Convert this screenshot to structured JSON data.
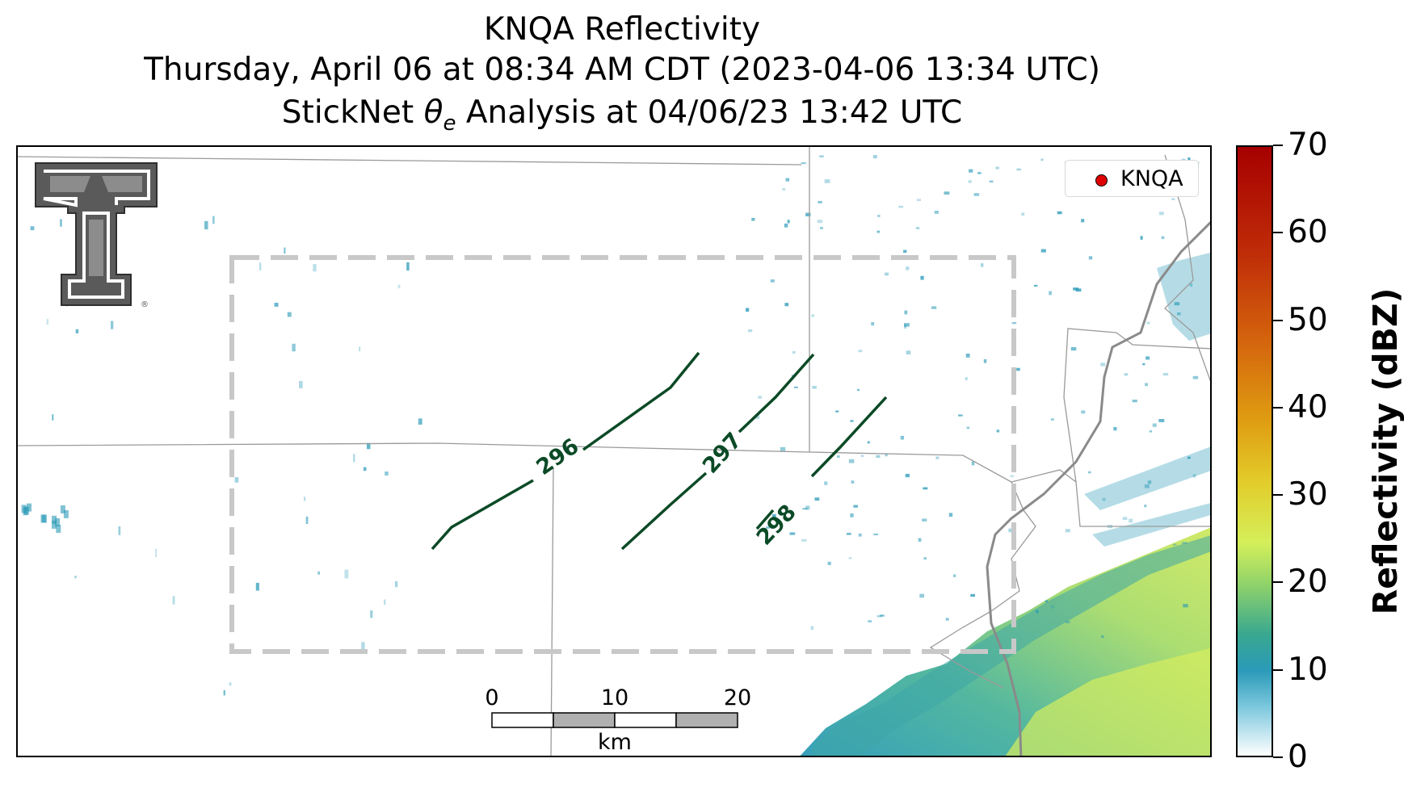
{
  "title": {
    "line1": "KNQA Reflectivity",
    "line2": "Thursday, April 06 at 08:34 AM CDT (2023-04-06 13:34 UTC)",
    "line3_prefix": "StickNet ",
    "line3_symbol": "θ",
    "line3_subscript": "e",
    "line3_suffix": " Analysis at 04/06/23 13:42 UTC"
  },
  "legend": {
    "label": "KNQA",
    "marker_color": "#e00000"
  },
  "logo": {
    "name": "texas-tech-double-t-logo",
    "mark": "®"
  },
  "contours": {
    "color": "#0b4a26",
    "labels": [
      "296",
      "297",
      "298"
    ]
  },
  "analysis_box": {
    "style": "dashed",
    "color": "#c8c8c8"
  },
  "scale_bar": {
    "ticks": [
      "0",
      "10",
      "20"
    ],
    "unit": "km",
    "segment_colors": [
      "#ffffff",
      "#b0b0b0",
      "#ffffff",
      "#b0b0b0"
    ]
  },
  "colorbar": {
    "label": "Reflectivity (dBZ)",
    "ticks": [
      "0",
      "10",
      "20",
      "30",
      "40",
      "50",
      "60",
      "70"
    ],
    "min": 0,
    "max": 70
  }
}
